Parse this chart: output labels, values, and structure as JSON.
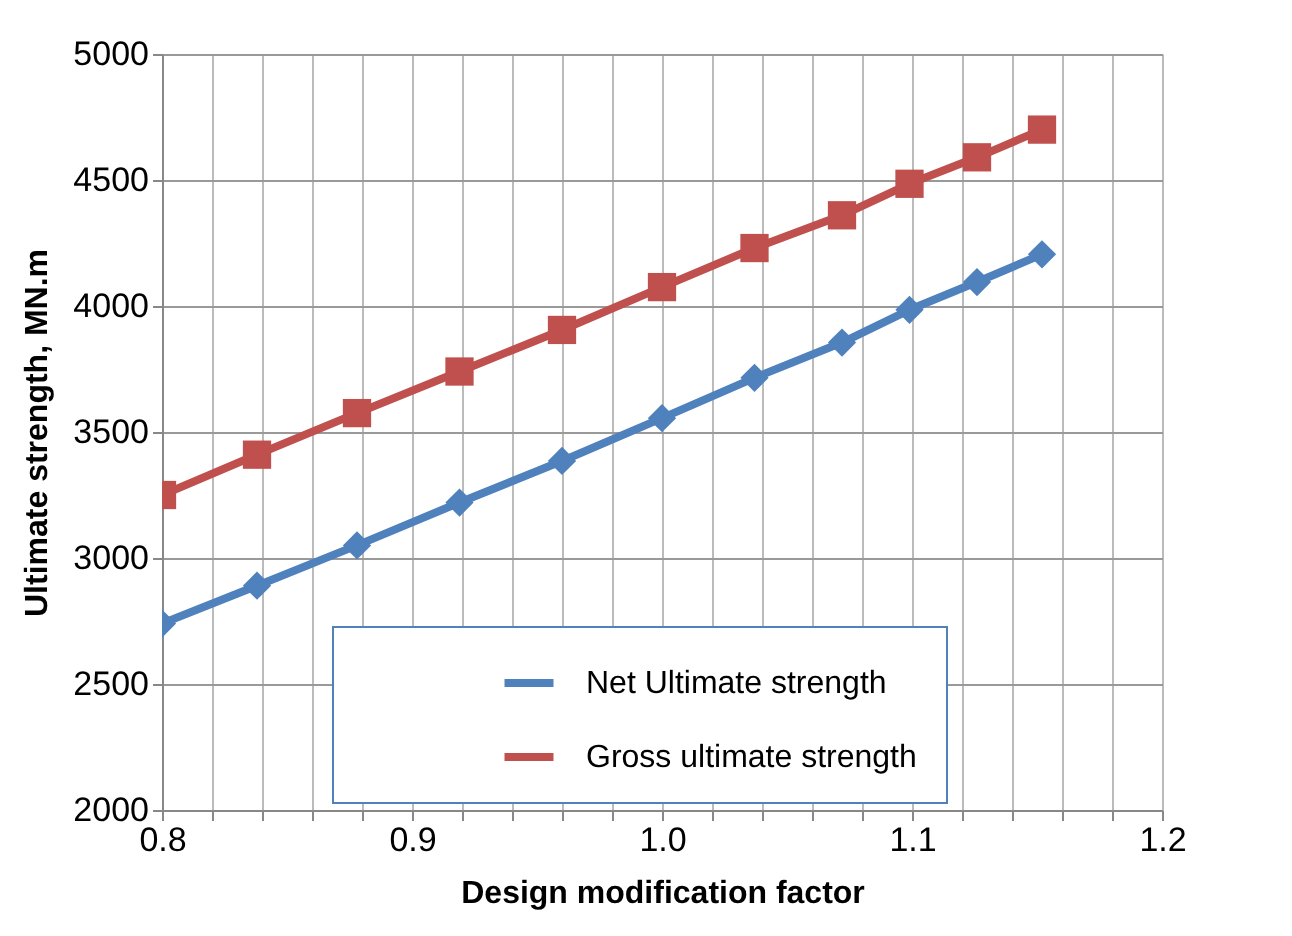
{
  "chart_data": {
    "type": "line",
    "xlabel": "Design modification factor",
    "ylabel": "Ultimate strength, MN.m",
    "xlim": [
      0.8,
      1.2
    ],
    "ylim": [
      2000,
      5000
    ],
    "xticks": [
      {
        "value": 0.8,
        "label": "0.8"
      },
      {
        "value": 0.82,
        "label": null
      },
      {
        "value": 0.84,
        "label": null
      },
      {
        "value": 0.86,
        "label": null
      },
      {
        "value": 0.88,
        "label": null
      },
      {
        "value": 0.9,
        "label": "0.9"
      },
      {
        "value": 0.92,
        "label": null
      },
      {
        "value": 0.94,
        "label": null
      },
      {
        "value": 0.96,
        "label": null
      },
      {
        "value": 0.98,
        "label": null
      },
      {
        "value": 1.0,
        "label": "1.0"
      },
      {
        "value": 1.02,
        "label": null
      },
      {
        "value": 1.04,
        "label": null
      },
      {
        "value": 1.06,
        "label": null
      },
      {
        "value": 1.08,
        "label": null
      },
      {
        "value": 1.1,
        "label": "1.1"
      },
      {
        "value": 1.12,
        "label": null
      },
      {
        "value": 1.14,
        "label": null
      },
      {
        "value": 1.16,
        "label": null
      },
      {
        "value": 1.18,
        "label": null
      },
      {
        "value": 1.2,
        "label": "1.2"
      }
    ],
    "yticks": [
      2000,
      2500,
      3000,
      3500,
      4000,
      4500,
      5000
    ],
    "grid": true,
    "legend": "bottom right",
    "line_style": "solid",
    "series": [
      {
        "name": "Net Ultimate strength",
        "color": "#4f81bd",
        "marker": "diamond",
        "x": [
          0.8,
          0.838,
          0.878,
          0.919,
          0.96,
          1.0,
          1.037,
          1.072,
          1.099,
          1.126,
          1.152
        ],
        "values": [
          2740,
          2890,
          3050,
          3220,
          3385,
          3555,
          3715,
          3855,
          3985,
          4095,
          4205
        ]
      },
      {
        "name": "Gross ultimate strength",
        "color": "#c0504d",
        "marker": "square",
        "x": [
          0.8,
          0.838,
          0.878,
          0.919,
          0.96,
          1.0,
          1.037,
          1.072,
          1.099,
          1.126,
          1.152
        ],
        "values": [
          3250,
          3410,
          3575,
          3740,
          3905,
          4075,
          4230,
          4360,
          4485,
          4590,
          4700
        ]
      }
    ]
  }
}
